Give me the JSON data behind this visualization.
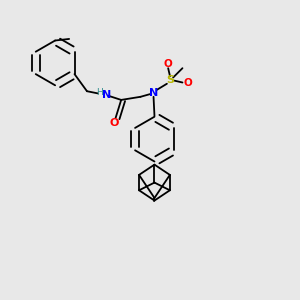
{
  "background_color": "#e8e8e8",
  "figsize": [
    3.0,
    3.0
  ],
  "dpi": 100,
  "lw": 1.3,
  "atoms": {
    "NH": {
      "color": "#2e8b8b"
    },
    "N": {
      "color": "#0000ff"
    },
    "O": {
      "color": "#ff0000"
    },
    "S": {
      "color": "#b8b800"
    }
  }
}
